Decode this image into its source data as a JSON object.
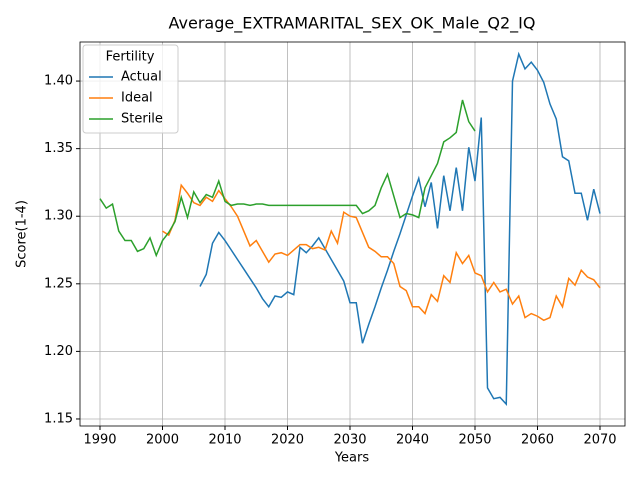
{
  "chart_data": {
    "type": "line",
    "title": "Average_EXTRAMARITAL_SEX_OK_Male_Q2_IQ",
    "x_label": "Years",
    "y_label": "Score(1-4)",
    "legend_title": "Fertility",
    "legend": "upper left",
    "grid": true,
    "x": [
      1990,
      1991,
      1992,
      1993,
      1994,
      1995,
      1996,
      1997,
      1998,
      1999,
      2000,
      2001,
      2002,
      2003,
      2004,
      2005,
      2006,
      2007,
      2008,
      2009,
      2010,
      2011,
      2012,
      2013,
      2014,
      2015,
      2016,
      2017,
      2018,
      2019,
      2020,
      2021,
      2022,
      2023,
      2024,
      2025,
      2026,
      2027,
      2028,
      2029,
      2030,
      2031,
      2032,
      2033,
      2034,
      2035,
      2036,
      2037,
      2038,
      2039,
      2040,
      2041,
      2042,
      2043,
      2044,
      2045,
      2046,
      2047,
      2048,
      2049,
      2050,
      2051,
      2052,
      2053,
      2054,
      2055,
      2056,
      2057,
      2058,
      2059,
      2060,
      2061,
      2062,
      2063,
      2064,
      2065,
      2066,
      2067,
      2068,
      2069,
      2070
    ],
    "series": [
      {
        "name": "Actual",
        "color": "#1f77b4",
        "values": [
          null,
          null,
          null,
          null,
          null,
          null,
          null,
          null,
          null,
          null,
          null,
          null,
          null,
          null,
          null,
          null,
          1.248,
          1.257,
          1.28,
          1.288,
          1.282,
          1.275,
          1.268,
          1.261,
          1.254,
          1.247,
          1.239,
          1.233,
          1.241,
          1.24,
          1.244,
          1.242,
          1.277,
          1.273,
          1.278,
          1.284,
          1.276,
          1.268,
          1.26,
          1.252,
          1.236,
          1.236,
          1.206,
          1.22,
          1.233,
          1.247,
          1.26,
          1.274,
          1.287,
          1.301,
          1.315,
          1.328,
          1.307,
          1.325,
          1.291,
          1.33,
          1.304,
          1.336,
          1.304,
          1.351,
          1.326,
          1.373,
          1.173,
          1.165,
          1.166,
          1.161,
          1.4,
          1.42,
          1.409,
          1.414,
          1.408,
          1.399,
          1.383,
          1.372,
          1.344,
          1.341,
          1.317,
          1.317,
          1.297,
          1.32,
          1.302
        ]
      },
      {
        "name": "Ideal",
        "color": "#ff7f0e",
        "values": [
          null,
          null,
          null,
          null,
          null,
          null,
          null,
          null,
          null,
          null,
          1.289,
          1.286,
          1.297,
          1.323,
          1.317,
          1.31,
          1.308,
          1.314,
          1.311,
          1.319,
          1.313,
          1.307,
          1.3,
          1.289,
          1.278,
          1.282,
          1.274,
          1.266,
          1.272,
          1.273,
          1.271,
          1.275,
          1.279,
          1.279,
          1.276,
          1.277,
          1.275,
          1.289,
          1.28,
          1.303,
          1.3,
          1.299,
          1.288,
          1.277,
          1.274,
          1.27,
          1.27,
          1.265,
          1.248,
          1.245,
          1.233,
          1.233,
          1.228,
          1.242,
          1.237,
          1.256,
          1.251,
          1.273,
          1.265,
          1.271,
          1.258,
          1.256,
          1.244,
          1.251,
          1.244,
          1.246,
          1.235,
          1.241,
          1.225,
          1.228,
          1.226,
          1.223,
          1.225,
          1.241,
          1.233,
          1.254,
          1.249,
          1.26,
          1.255,
          1.253,
          1.247
        ]
      },
      {
        "name": "Sterile",
        "color": "#2ca02c",
        "values": [
          1.313,
          1.306,
          1.309,
          1.289,
          1.282,
          1.282,
          1.274,
          1.276,
          1.284,
          1.271,
          1.282,
          1.288,
          1.296,
          1.314,
          1.299,
          1.318,
          1.31,
          1.316,
          1.314,
          1.326,
          1.311,
          1.308,
          1.309,
          1.309,
          1.308,
          1.309,
          1.309,
          1.308,
          1.308,
          1.308,
          1.308,
          1.308,
          1.308,
          1.308,
          1.308,
          1.308,
          1.308,
          1.308,
          1.308,
          1.308,
          1.308,
          1.308,
          1.302,
          1.304,
          1.308,
          1.321,
          1.331,
          1.315,
          1.299,
          1.302,
          1.301,
          1.299,
          1.321,
          1.33,
          1.339,
          1.355,
          1.358,
          1.362,
          1.386,
          1.37,
          1.363,
          null,
          null,
          null,
          null,
          null,
          null,
          null,
          null,
          null,
          null,
          null,
          null,
          null,
          null,
          null,
          null,
          null,
          null,
          null,
          null
        ]
      }
    ],
    "xlim": [
      1986.8,
      2074
    ],
    "xticks": [
      1990,
      2000,
      2010,
      2020,
      2030,
      2040,
      2050,
      2060,
      2070
    ],
    "ylim": [
      1.1448,
      1.4289
    ],
    "yticks": [
      1.15,
      {
        "value": 1.2,
        "label": "1.20"
      },
      1.25,
      {
        "value": 1.3,
        "label": "1.30"
      },
      1.35,
      {
        "value": 1.4,
        "label": "1.40"
      }
    ]
  }
}
